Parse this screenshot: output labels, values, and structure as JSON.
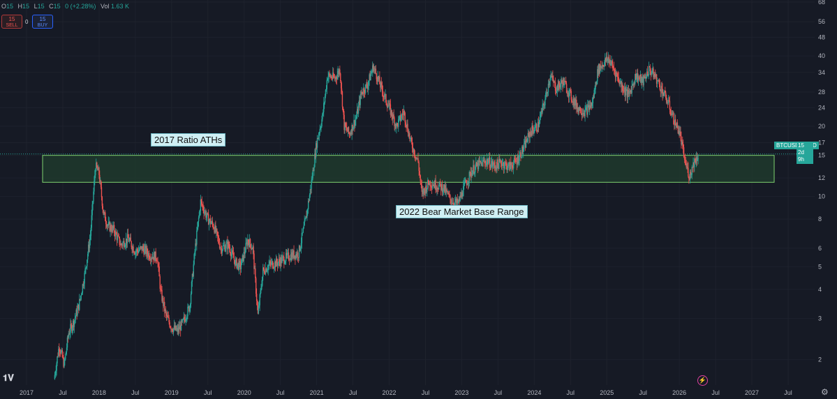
{
  "ohlc": {
    "o_label": "O",
    "o": "15",
    "h_label": "H",
    "h": "15",
    "l_label": "L",
    "l": "15",
    "c_label": "C",
    "c": "15",
    "change": "0 (+2.28%)",
    "vol_label": "Vol",
    "vol": "1.63 K"
  },
  "trade": {
    "sell_price": "15",
    "sell_label": "SELL",
    "spread": "0",
    "buy_price": "15",
    "buy_label": "BUY"
  },
  "annotations": {
    "top": "2017 Ratio ATHs",
    "bottom": "2022 Bear Market Base Range"
  },
  "price_tag": {
    "symbol": "BTCUSD/GOLD",
    "price": "15",
    "countdown": "2d 9h"
  },
  "icons": {
    "logo": "tradingview-logo-icon",
    "settings": "gear-icon",
    "bolt": "lightning-icon"
  },
  "colors": {
    "background": "#161a25",
    "up": "#26a69a",
    "down": "#ef5350",
    "zone_fill": "#1f3a2d",
    "zone_border": "#7fd36f",
    "label_bg": "#cfeff4",
    "text": "#b2b5be"
  },
  "chart_data": {
    "type": "candlestick",
    "symbol": "BTCUSD/GOLD",
    "y_scale": "log",
    "ylim": [
      1.6,
      68
    ],
    "xlim": [
      "2017-01-01",
      "2027-10-01"
    ],
    "y_ticks": [
      "2",
      "3",
      "4",
      "5",
      "6",
      "8",
      "10",
      "12",
      "15",
      "17",
      "20",
      "24",
      "28",
      "34",
      "40",
      "48",
      "56",
      "68"
    ],
    "x_ticks": [
      {
        "label": "2017",
        "t": 2017.0
      },
      {
        "label": "Jul",
        "t": 2017.5
      },
      {
        "label": "2018",
        "t": 2018.0
      },
      {
        "label": "Jul",
        "t": 2018.5
      },
      {
        "label": "2019",
        "t": 2019.0
      },
      {
        "label": "Jul",
        "t": 2019.5
      },
      {
        "label": "2020",
        "t": 2020.0
      },
      {
        "label": "Jul",
        "t": 2020.5
      },
      {
        "label": "2021",
        "t": 2021.0
      },
      {
        "label": "Jul",
        "t": 2021.5
      },
      {
        "label": "2022",
        "t": 2022.0
      },
      {
        "label": "Jul",
        "t": 2022.5
      },
      {
        "label": "2023",
        "t": 2023.0
      },
      {
        "label": "Jul",
        "t": 2023.5
      },
      {
        "label": "2024",
        "t": 2024.0
      },
      {
        "label": "Jul",
        "t": 2024.5
      },
      {
        "label": "2025",
        "t": 2025.0
      },
      {
        "label": "Jul",
        "t": 2025.5
      },
      {
        "label": "2026",
        "t": 2026.0
      },
      {
        "label": "Jul",
        "t": 2026.5
      },
      {
        "label": "2027",
        "t": 2027.0
      },
      {
        "label": "Jul",
        "t": 2027.5
      }
    ],
    "zone": {
      "y_low": 11.5,
      "y_high": 15,
      "t_start": 2017.2,
      "t_end": 2027.3
    },
    "current_price": 15,
    "series": [
      {
        "values": [
          [
            2017.38,
            1.65
          ],
          [
            2017.45,
            2.3
          ],
          [
            2017.52,
            1.9
          ],
          [
            2017.58,
            2.6
          ],
          [
            2017.65,
            2.9
          ],
          [
            2017.72,
            3.4
          ],
          [
            2017.8,
            4.6
          ],
          [
            2017.88,
            6.8
          ],
          [
            2017.95,
            13.5
          ],
          [
            2018.0,
            12.5
          ],
          [
            2018.06,
            8.5
          ],
          [
            2018.12,
            7.5
          ],
          [
            2018.2,
            7.2
          ],
          [
            2018.3,
            6.2
          ],
          [
            2018.4,
            6.6
          ],
          [
            2018.5,
            5.8
          ],
          [
            2018.6,
            6.0
          ],
          [
            2018.7,
            5.6
          ],
          [
            2018.8,
            5.5
          ],
          [
            2018.85,
            3.9
          ],
          [
            2018.92,
            3.1
          ],
          [
            2019.0,
            2.75
          ],
          [
            2019.08,
            2.65
          ],
          [
            2019.15,
            2.85
          ],
          [
            2019.25,
            3.4
          ],
          [
            2019.32,
            5.8
          ],
          [
            2019.4,
            9.5
          ],
          [
            2019.5,
            8.0
          ],
          [
            2019.58,
            7.5
          ],
          [
            2019.68,
            6.0
          ],
          [
            2019.78,
            6.2
          ],
          [
            2019.88,
            5.2
          ],
          [
            2019.95,
            5.0
          ],
          [
            2020.05,
            6.5
          ],
          [
            2020.12,
            6.0
          ],
          [
            2020.19,
            3.1
          ],
          [
            2020.26,
            4.8
          ],
          [
            2020.35,
            5.1
          ],
          [
            2020.45,
            5.2
          ],
          [
            2020.55,
            5.4
          ],
          [
            2020.65,
            5.6
          ],
          [
            2020.75,
            5.7
          ],
          [
            2020.85,
            8.0
          ],
          [
            2020.92,
            11.0
          ],
          [
            2021.0,
            17.0
          ],
          [
            2021.08,
            22.0
          ],
          [
            2021.15,
            33.0
          ],
          [
            2021.25,
            32.0
          ],
          [
            2021.32,
            35.0
          ],
          [
            2021.38,
            20.0
          ],
          [
            2021.45,
            18.5
          ],
          [
            2021.55,
            22.0
          ],
          [
            2021.62,
            28.0
          ],
          [
            2021.7,
            30.0
          ],
          [
            2021.78,
            36.0
          ],
          [
            2021.86,
            31.0
          ],
          [
            2021.93,
            27.0
          ],
          [
            2022.0,
            24.0
          ],
          [
            2022.1,
            20.0
          ],
          [
            2022.2,
            23.0
          ],
          [
            2022.3,
            17.0
          ],
          [
            2022.4,
            14.0
          ],
          [
            2022.45,
            10.2
          ],
          [
            2022.55,
            11.5
          ],
          [
            2022.65,
            11.2
          ],
          [
            2022.75,
            10.9
          ],
          [
            2022.85,
            9.6
          ],
          [
            2022.95,
            9.3
          ],
          [
            2023.05,
            11.3
          ],
          [
            2023.15,
            13.0
          ],
          [
            2023.25,
            13.8
          ],
          [
            2023.35,
            14.2
          ],
          [
            2023.45,
            13.5
          ],
          [
            2023.55,
            14.0
          ],
          [
            2023.65,
            13.4
          ],
          [
            2023.75,
            14.1
          ],
          [
            2023.85,
            16.0
          ],
          [
            2023.95,
            19.0
          ],
          [
            2024.05,
            20.0
          ],
          [
            2024.15,
            26.0
          ],
          [
            2024.22,
            33.0
          ],
          [
            2024.3,
            29.0
          ],
          [
            2024.4,
            31.0
          ],
          [
            2024.5,
            27.0
          ],
          [
            2024.6,
            24.0
          ],
          [
            2024.7,
            23.0
          ],
          [
            2024.8,
            25.0
          ],
          [
            2024.88,
            35.0
          ],
          [
            2024.95,
            37.0
          ],
          [
            2025.02,
            39.0
          ],
          [
            2025.1,
            35.0
          ],
          [
            2025.2,
            30.0
          ],
          [
            2025.3,
            27.0
          ],
          [
            2025.4,
            33.0
          ],
          [
            2025.5,
            31.0
          ],
          [
            2025.58,
            35.0
          ],
          [
            2025.66,
            33.0
          ],
          [
            2025.75,
            29.0
          ],
          [
            2025.85,
            25.0
          ],
          [
            2025.93,
            21.0
          ],
          [
            2026.0,
            19.0
          ],
          [
            2026.08,
            14.0
          ],
          [
            2026.14,
            12.2
          ],
          [
            2026.2,
            14.0
          ],
          [
            2026.26,
            15.0
          ]
        ]
      }
    ]
  }
}
